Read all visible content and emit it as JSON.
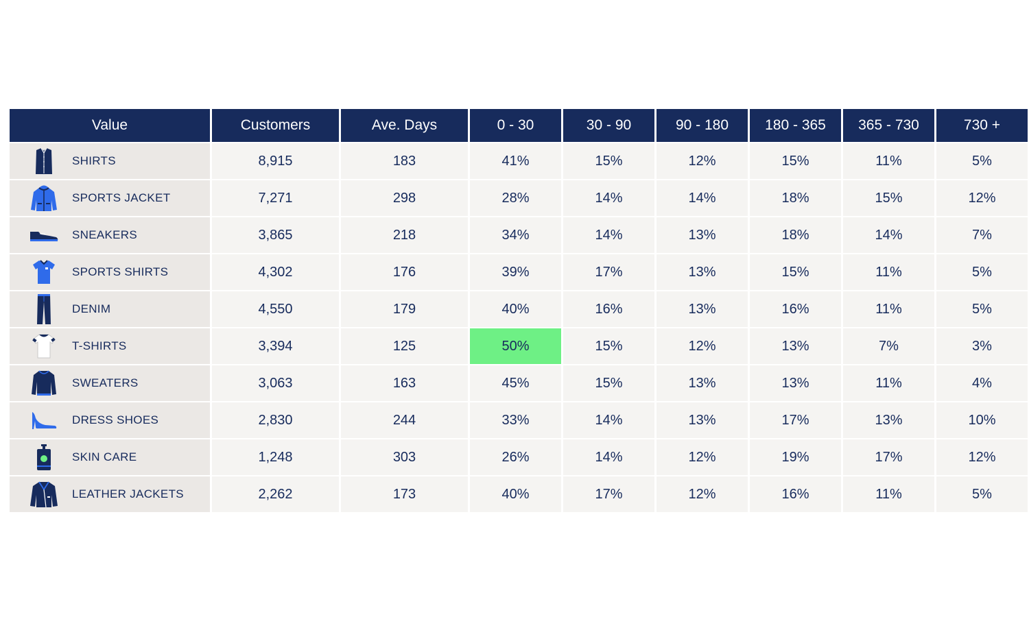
{
  "colors": {
    "header_bg": "#172b5c",
    "text": "#172b5c",
    "highlight": "#6ef085",
    "icon_navy": "#172b5c",
    "icon_blue": "#2f6bea"
  },
  "chart_data": {
    "type": "table",
    "columns": [
      "Value",
      "Customers",
      "Ave. Days",
      "0 - 30",
      "30 - 90",
      "90 - 180",
      "180 - 365",
      "365 - 730",
      "730 +"
    ],
    "rows": [
      {
        "icon": "shirt-icon",
        "label": "SHIRTS",
        "values": [
          "8,915",
          "183",
          "41%",
          "15%",
          "12%",
          "15%",
          "11%",
          "5%"
        ]
      },
      {
        "icon": "sports-jacket-icon",
        "label": "SPORTS JACKET",
        "values": [
          "7,271",
          "298",
          "28%",
          "14%",
          "14%",
          "18%",
          "15%",
          "12%"
        ]
      },
      {
        "icon": "sneaker-icon",
        "label": "SNEAKERS",
        "values": [
          "3,865",
          "218",
          "34%",
          "14%",
          "13%",
          "18%",
          "14%",
          "7%"
        ]
      },
      {
        "icon": "sports-shirt-icon",
        "label": "SPORTS SHIRTS",
        "values": [
          "4,302",
          "176",
          "39%",
          "17%",
          "13%",
          "15%",
          "11%",
          "5%"
        ]
      },
      {
        "icon": "denim-icon",
        "label": "DENIM",
        "values": [
          "4,550",
          "179",
          "40%",
          "16%",
          "13%",
          "16%",
          "11%",
          "5%"
        ]
      },
      {
        "icon": "t-shirt-icon",
        "label": "T-SHIRTS",
        "values": [
          "3,394",
          "125",
          "50%",
          "15%",
          "12%",
          "13%",
          "7%",
          "3%"
        ]
      },
      {
        "icon": "sweater-icon",
        "label": "SWEATERS",
        "values": [
          "3,063",
          "163",
          "45%",
          "15%",
          "13%",
          "13%",
          "11%",
          "4%"
        ]
      },
      {
        "icon": "dress-shoe-icon",
        "label": "DRESS SHOES",
        "values": [
          "2,830",
          "244",
          "33%",
          "14%",
          "13%",
          "17%",
          "13%",
          "10%"
        ]
      },
      {
        "icon": "skin-care-icon",
        "label": "SKIN CARE",
        "values": [
          "1,248",
          "303",
          "26%",
          "14%",
          "12%",
          "19%",
          "17%",
          "12%"
        ]
      },
      {
        "icon": "leather-jacket-icon",
        "label": "LEATHER JACKETS",
        "values": [
          "2,262",
          "173",
          "40%",
          "17%",
          "12%",
          "16%",
          "11%",
          "5%"
        ]
      }
    ],
    "highlight": {
      "row": 5,
      "column": 3
    }
  }
}
